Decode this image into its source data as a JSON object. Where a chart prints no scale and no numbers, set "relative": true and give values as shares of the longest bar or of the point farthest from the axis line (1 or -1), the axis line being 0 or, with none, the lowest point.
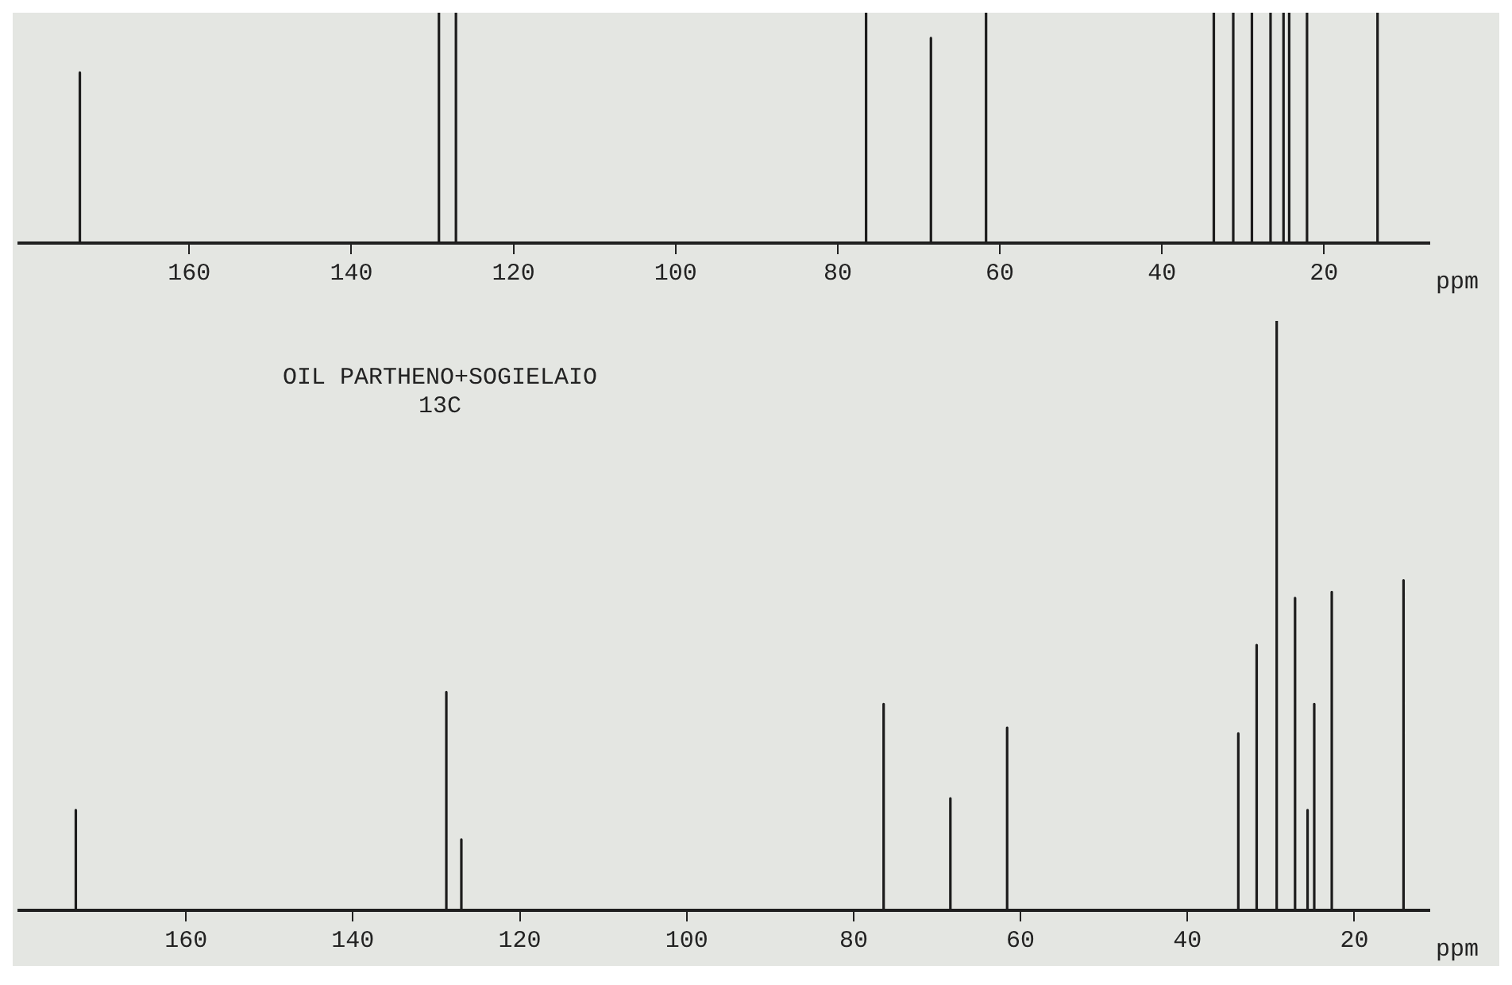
{
  "chart_data": [
    {
      "type": "line",
      "relative": true,
      "xlim": [
        181,
        7
      ],
      "xticks": [
        160,
        140,
        120,
        100,
        80,
        60,
        40,
        20
      ],
      "xlabel": "ppm",
      "grid": false,
      "legend": false,
      "marker": "none",
      "series": [
        {
          "color": "#1c1c1c",
          "x": [
            181,
            173.5,
            173.5,
            173.5,
            129.2,
            129.2,
            129.2,
            127.1,
            127.1,
            127.1,
            76.5,
            76.5,
            76.5,
            68.5,
            68.5,
            68.5,
            61.7,
            61.7,
            61.7,
            33.6,
            33.6,
            33.6,
            31.2,
            31.2,
            31.2,
            28.9,
            28.9,
            28.9,
            26.6,
            26.6,
            26.6,
            25.0,
            25.0,
            25.0,
            24.3,
            24.3,
            24.3,
            22.1,
            22.1,
            22.1,
            13.4,
            13.4,
            13.4,
            7
          ],
          "values": [
            0,
            0,
            0.74,
            0,
            0,
            1,
            0,
            0,
            1,
            0,
            0,
            1,
            0,
            0,
            0.89,
            0,
            0,
            1,
            0,
            0,
            1,
            0,
            0,
            1,
            0,
            0,
            1,
            0,
            0,
            1,
            0,
            0,
            1,
            0,
            0,
            1,
            0,
            0,
            1,
            0,
            0,
            1,
            0,
            0
          ]
        }
      ]
    },
    {
      "type": "line",
      "relative": true,
      "xlim": [
        180,
        11
      ],
      "xticks": [
        160,
        140,
        120,
        100,
        80,
        60,
        40,
        20
      ],
      "xlabel": "ppm",
      "grid": false,
      "legend": false,
      "marker": "none",
      "annotations": [
        "OIL PARTHENO+SOGIELAIO",
        "13C"
      ],
      "series": [
        {
          "color": "#1c1c1c",
          "x": [
            180,
            173.2,
            173.2,
            173.2,
            128.8,
            128.8,
            128.8,
            127.0,
            127.0,
            127.0,
            76.4,
            76.4,
            76.4,
            68.4,
            68.4,
            68.4,
            61.6,
            61.6,
            61.6,
            33.9,
            33.9,
            33.9,
            31.7,
            31.7,
            31.7,
            29.3,
            29.3,
            29.3,
            27.1,
            27.1,
            27.1,
            25.6,
            25.6,
            25.6,
            24.8,
            24.8,
            24.8,
            22.7,
            22.7,
            22.7,
            14.1,
            14.1,
            14.1,
            11
          ],
          "values": [
            0,
            0,
            0.17,
            0,
            0,
            0.37,
            0,
            0,
            0.12,
            0,
            0,
            0.35,
            0,
            0,
            0.19,
            0,
            0,
            0.31,
            0,
            0,
            0.3,
            0,
            0,
            0.45,
            0,
            0,
            1,
            0,
            0,
            0.53,
            0,
            0,
            0.17,
            0,
            0,
            0.35,
            0,
            0,
            0.54,
            0,
            0,
            0.56,
            0,
            0
          ]
        }
      ]
    }
  ]
}
